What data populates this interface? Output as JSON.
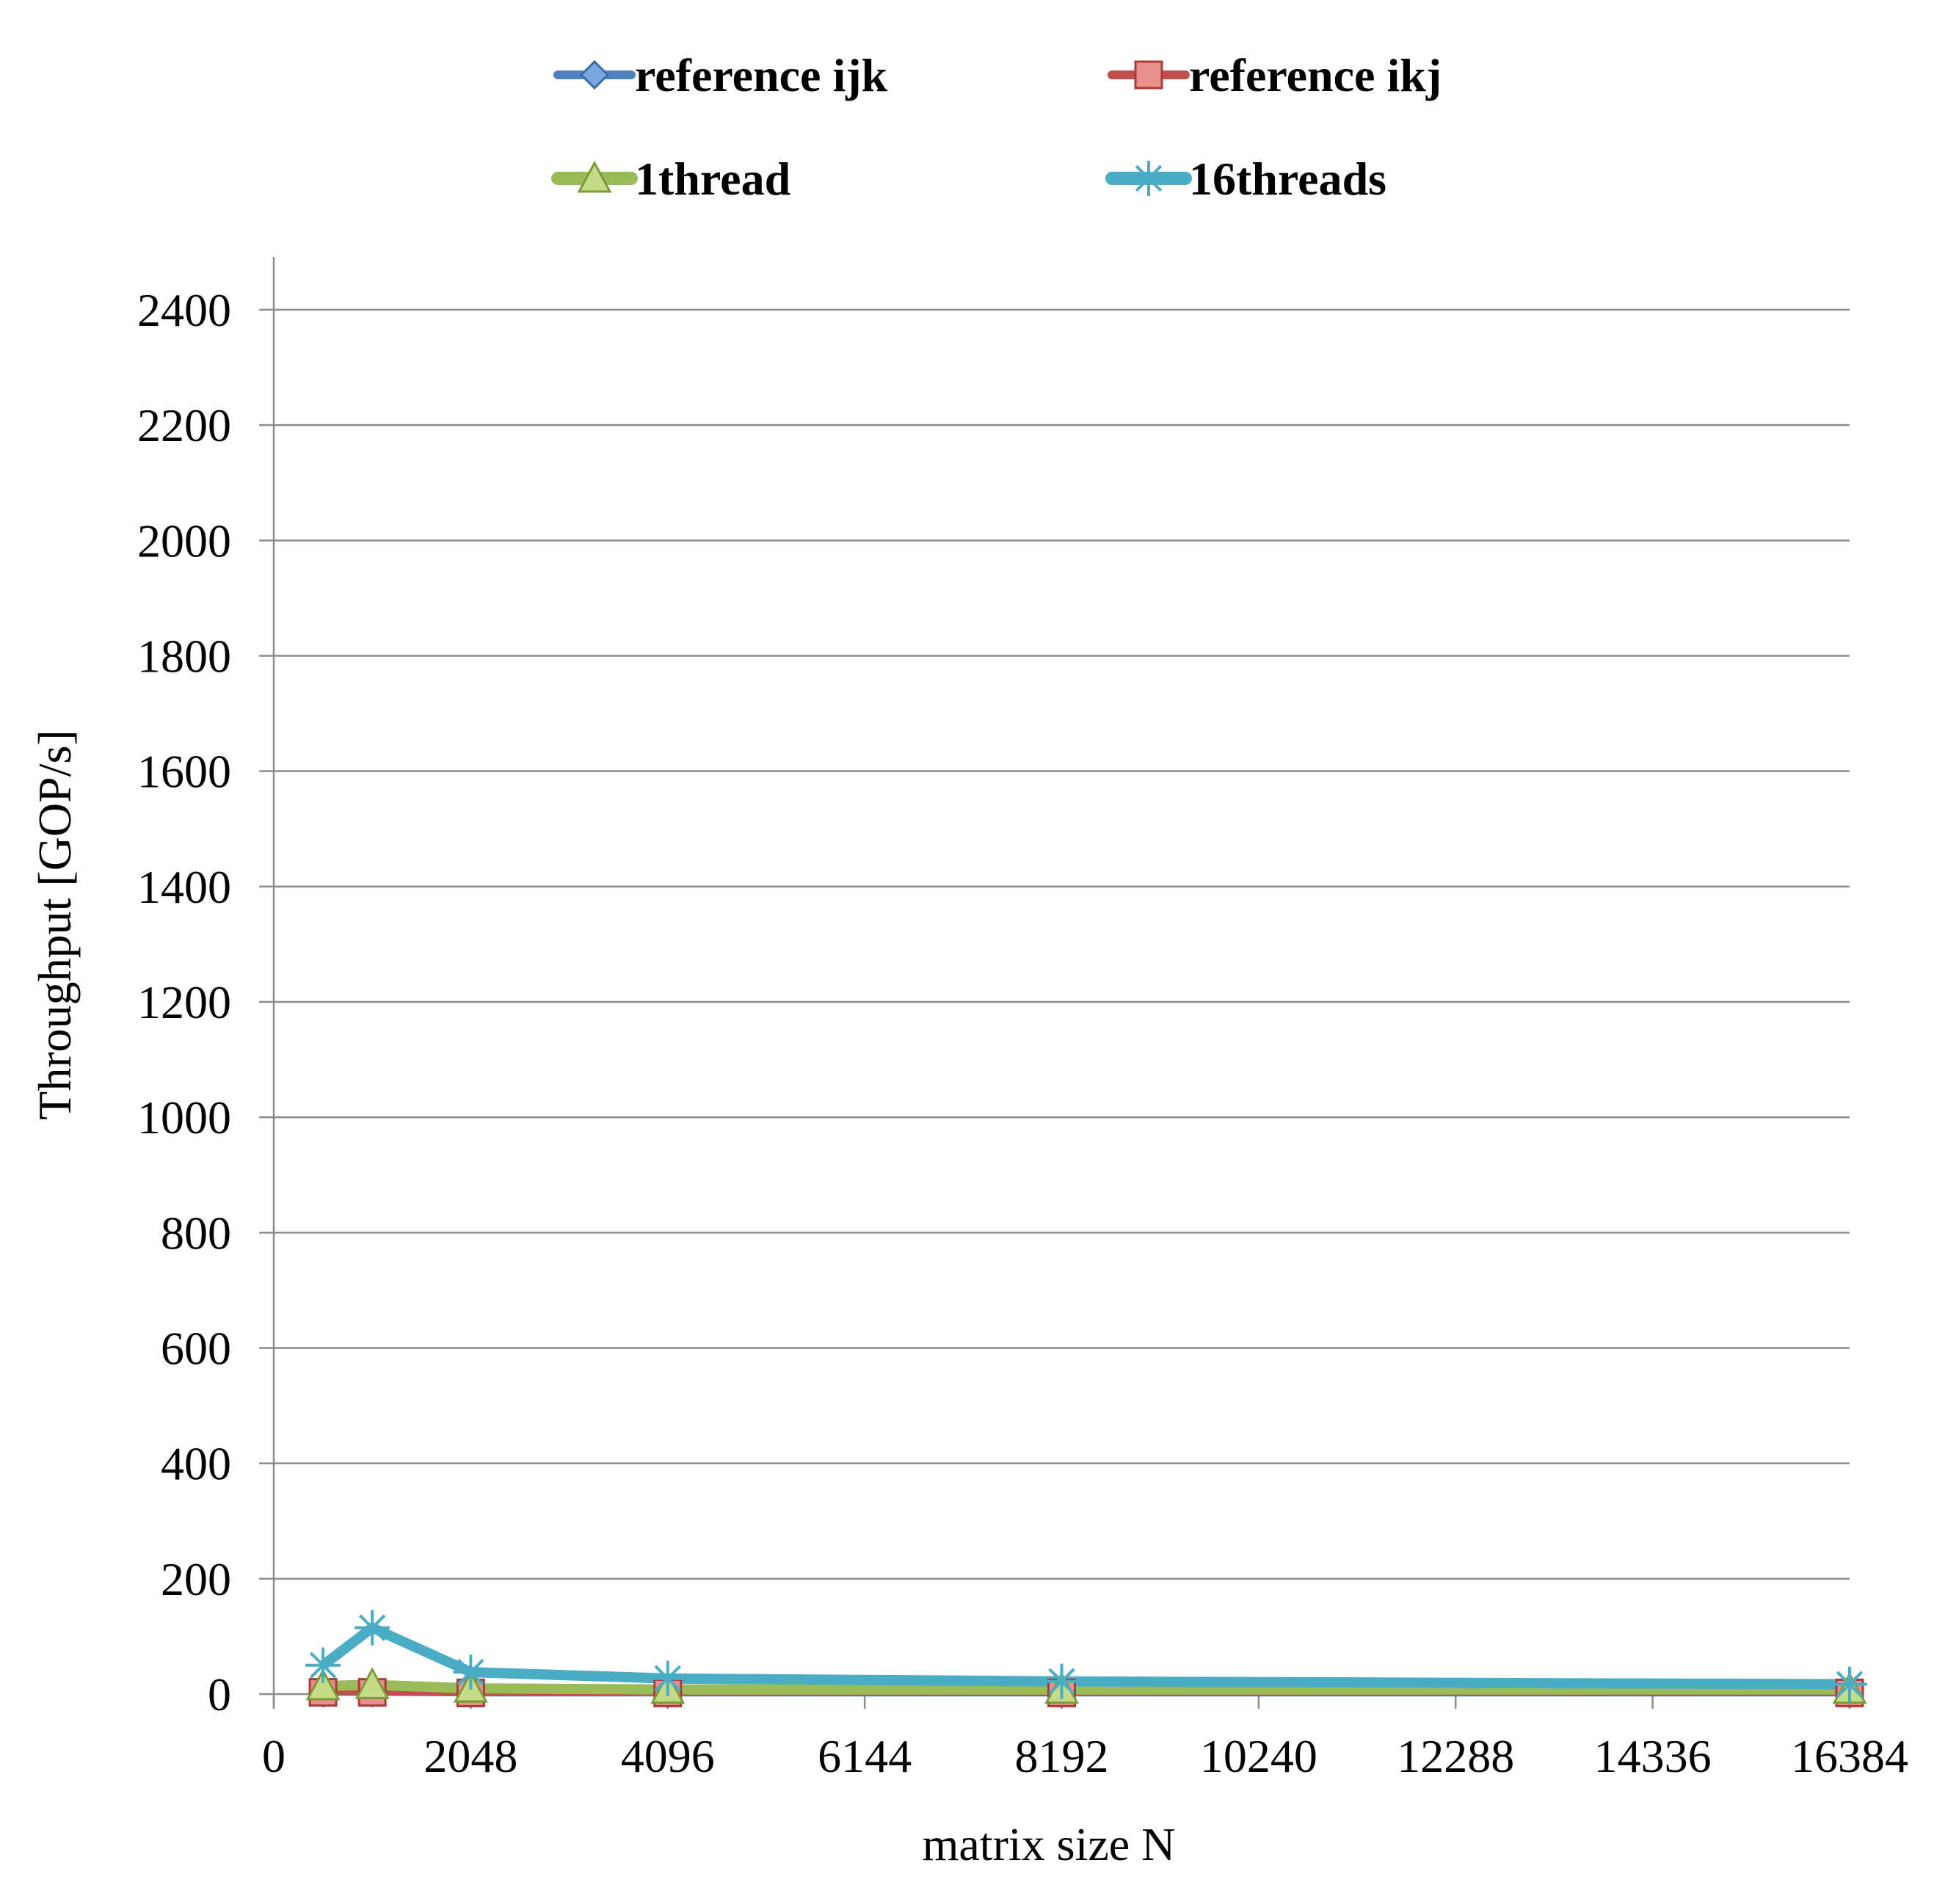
{
  "chart_data": {
    "type": "line",
    "xlabel": "matrix size N",
    "ylabel": "Throughput [GOP/s]",
    "xlim": [
      0,
      16384
    ],
    "ylim": [
      0,
      2400
    ],
    "x_ticks": [
      0,
      2048,
      4096,
      6144,
      8192,
      10240,
      12288,
      14336,
      16384
    ],
    "y_ticks": [
      0,
      200,
      400,
      600,
      800,
      1000,
      1200,
      1400,
      1600,
      1800,
      2000,
      2200,
      2400
    ],
    "grid": "horizontal",
    "legend_position": "top",
    "series": [
      {
        "name": "reference ijk",
        "color": "#4F81BD",
        "marker": "diamond",
        "x": [
          512,
          1024,
          2048,
          4096,
          8192,
          16384
        ],
        "y": [
          2,
          2,
          1,
          1,
          1,
          1
        ]
      },
      {
        "name": "reference ikj",
        "color": "#C0504D",
        "marker": "square",
        "x": [
          512,
          1024,
          2048,
          4096,
          8192,
          16384
        ],
        "y": [
          3,
          3,
          2,
          2,
          2,
          2
        ]
      },
      {
        "name": "1thread",
        "color": "#9BBB59",
        "marker": "triangle",
        "x": [
          512,
          1024,
          2048,
          4096,
          8192,
          16384
        ],
        "y": [
          14,
          16,
          10,
          8,
          8,
          8
        ]
      },
      {
        "name": "16threads",
        "color": "#4BACC6",
        "marker": "asterisk",
        "x": [
          512,
          1024,
          2048,
          4096,
          8192,
          16384
        ],
        "y": [
          50,
          115,
          38,
          27,
          22,
          17
        ]
      }
    ]
  }
}
